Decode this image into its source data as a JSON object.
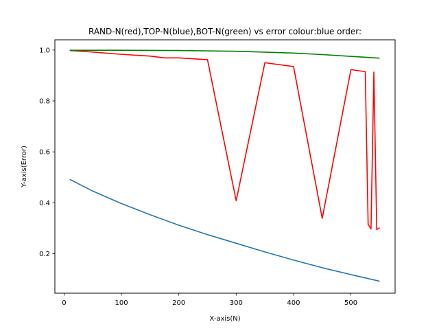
{
  "chart_data": {
    "type": "line",
    "title": "RAND-N(red),TOP-N(blue),BOT-N(green) vs error colour:blue order:",
    "xlabel": "X-axis(N)",
    "ylabel": "Y-axis(Error)",
    "xlim": [
      -16,
      577
    ],
    "ylim": [
      0.045,
      1.04
    ],
    "xticks": [
      0,
      100,
      200,
      300,
      400,
      500
    ],
    "xtick_labels": [
      "0",
      "100",
      "200",
      "300",
      "400",
      "500"
    ],
    "yticks": [
      0.2,
      0.4,
      0.6,
      0.8,
      1.0
    ],
    "ytick_labels": [
      "0.2",
      "0.4",
      "0.6",
      "0.8",
      "1.0"
    ],
    "grid": false,
    "series": [
      {
        "color": "#1f77b4",
        "x": [
          10,
          50,
          100,
          150,
          200,
          250,
          300,
          350,
          400,
          450,
          500,
          550
        ],
        "y": [
          0.492,
          0.446,
          0.397,
          0.353,
          0.312,
          0.275,
          0.241,
          0.207,
          0.175,
          0.145,
          0.118,
          0.092
        ]
      },
      {
        "color": "#ff0000",
        "x": [
          10,
          50,
          100,
          150,
          175,
          200,
          250,
          300,
          350,
          400,
          450,
          500,
          525,
          530,
          535,
          540,
          545,
          550
        ],
        "y": [
          0.998,
          0.992,
          0.983,
          0.976,
          0.969,
          0.969,
          0.962,
          0.408,
          0.95,
          0.935,
          0.339,
          0.923,
          0.915,
          0.315,
          0.297,
          0.913,
          0.295,
          0.302
        ]
      },
      {
        "color": "#008000",
        "x": [
          10,
          100,
          200,
          300,
          400,
          450,
          500,
          550
        ],
        "y": [
          0.999,
          0.999,
          0.998,
          0.995,
          0.988,
          0.982,
          0.975,
          0.968
        ]
      }
    ]
  }
}
